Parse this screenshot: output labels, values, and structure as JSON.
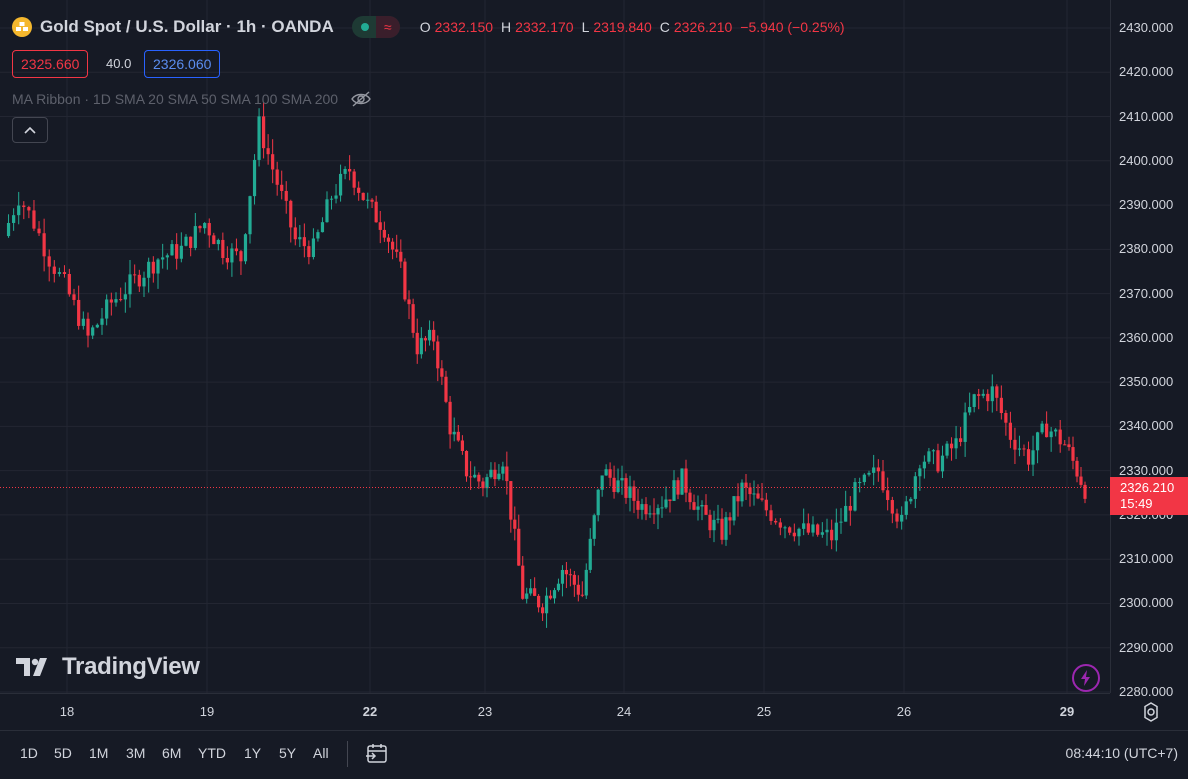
{
  "header": {
    "symbol_title": "Gold Spot / U.S. Dollar · 1h · OANDA",
    "status_icon": "market-status-dot",
    "ohlc": {
      "o_label": "O",
      "o": "2332.150",
      "h_label": "H",
      "h": "2332.170",
      "l_label": "L",
      "l": "2319.840",
      "c_label": "C",
      "c": "2326.210",
      "change": "−5.940 (−0.25%)"
    },
    "sell_price": "2325.660",
    "spread": "40.0",
    "buy_price": "2326.060",
    "indicator": "MA Ribbon · 1D SMA 20 SMA 50 SMA 100 SMA 200",
    "collapse_icon": "^"
  },
  "price_axis": {
    "ticks": [
      "2430.000",
      "2420.000",
      "2410.000",
      "2400.000",
      "2390.000",
      "2380.000",
      "2370.000",
      "2360.000",
      "2350.000",
      "2340.000",
      "2330.000",
      "2320.000",
      "2310.000",
      "2300.000",
      "2290.000",
      "2280.000"
    ],
    "current_price": "2326.210",
    "countdown": "15:49"
  },
  "time_axis": {
    "ticks": [
      {
        "label": "18",
        "bold": false
      },
      {
        "label": "19",
        "bold": false
      },
      {
        "label": "22",
        "bold": true
      },
      {
        "label": "23",
        "bold": false
      },
      {
        "label": "24",
        "bold": false
      },
      {
        "label": "25",
        "bold": false
      },
      {
        "label": "26",
        "bold": false
      },
      {
        "label": "29",
        "bold": true
      }
    ]
  },
  "bottom_bar": {
    "ranges": [
      "1D",
      "5D",
      "1M",
      "3M",
      "6M",
      "YTD",
      "1Y",
      "5Y",
      "All"
    ],
    "clock": "08:44:10 (UTC+7)"
  },
  "branding": {
    "logo_text": "TradingView"
  },
  "colors": {
    "up": "#22ab94",
    "down": "#f23645",
    "background": "#161a25",
    "grid": "#232632"
  },
  "chart_data": {
    "type": "candlestick",
    "title": "Gold Spot / U.S. Dollar · 1h · OANDA",
    "ylim": [
      2280,
      2435
    ],
    "grid": true,
    "anchors_x_labels": [
      "18",
      "19",
      "22",
      "23",
      "24",
      "25",
      "26",
      "29"
    ],
    "close_path": [
      [
        "start",
        2383
      ],
      [
        "",
        2392
      ],
      [
        "",
        2386
      ],
      [
        "",
        2378
      ],
      [
        "18",
        2372
      ],
      [
        "",
        2360
      ],
      [
        "",
        2368
      ],
      [
        "",
        2373
      ],
      [
        "",
        2378
      ],
      [
        "",
        2380
      ],
      [
        "19",
        2386
      ],
      [
        "",
        2380
      ],
      [
        "",
        2378
      ],
      [
        "",
        2408
      ],
      [
        "",
        2395
      ],
      [
        "",
        2382
      ],
      [
        "",
        2380
      ],
      [
        "",
        2392
      ],
      [
        "",
        2398
      ],
      [
        "22",
        2390
      ],
      [
        "",
        2385
      ],
      [
        "",
        2375
      ],
      [
        "",
        2358
      ],
      [
        "",
        2360
      ],
      [
        "",
        2340
      ],
      [
        "",
        2330
      ],
      [
        "23",
        2327
      ],
      [
        "",
        2333
      ],
      [
        "",
        2302
      ],
      [
        "",
        2300
      ],
      [
        "",
        2308
      ],
      [
        "",
        2302
      ],
      [
        "",
        2330
      ],
      [
        "24",
        2326
      ],
      [
        "",
        2322
      ],
      [
        "",
        2323
      ],
      [
        "",
        2328
      ],
      [
        "",
        2320
      ],
      [
        "",
        2316
      ],
      [
        "",
        2326
      ],
      [
        "25",
        2322
      ],
      [
        "",
        2318
      ],
      [
        "",
        2316
      ],
      [
        "",
        2315
      ],
      [
        "",
        2325
      ],
      [
        "",
        2330
      ],
      [
        "26",
        2318
      ],
      [
        "",
        2333
      ],
      [
        "",
        2332
      ],
      [
        "",
        2336
      ],
      [
        "",
        2346
      ],
      [
        "",
        2348
      ],
      [
        "",
        2338
      ],
      [
        "",
        2333
      ],
      [
        "",
        2340
      ],
      [
        "29",
        2336
      ],
      [
        "end",
        2326
      ]
    ]
  }
}
